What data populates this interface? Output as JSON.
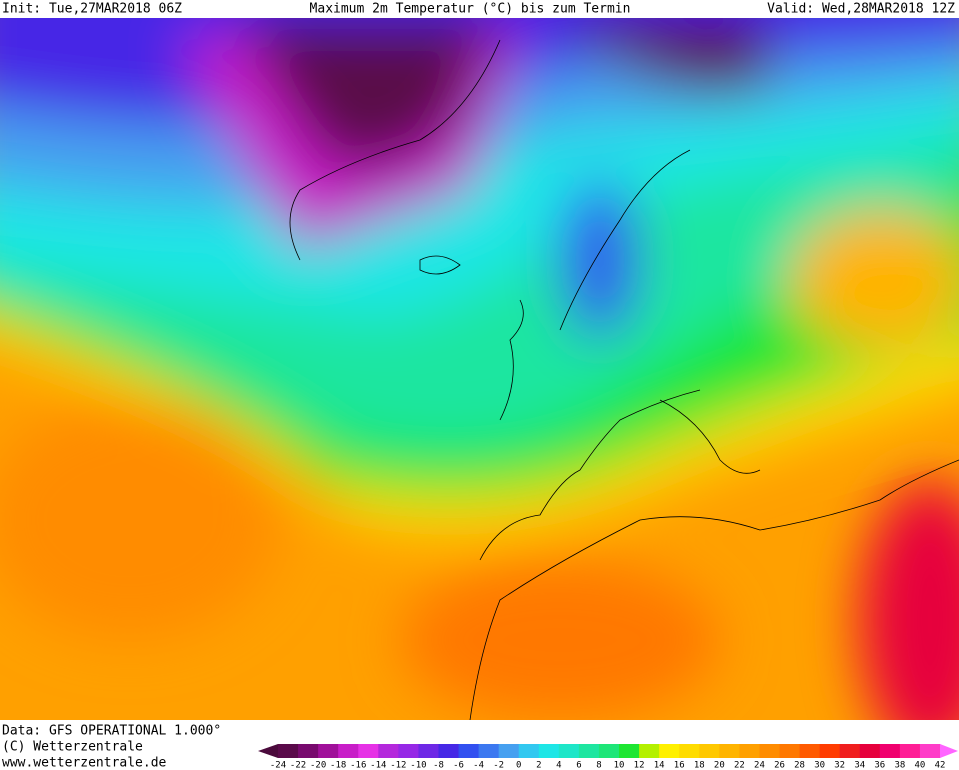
{
  "header": {
    "init": "Init: Tue,27MAR2018 06Z",
    "title": "Maximum 2m Temperatur (°C) bis zum Termin",
    "valid": "Valid: Wed,28MAR2018 12Z"
  },
  "footer": {
    "lines": [
      "Data: GFS OPERATIONAL 1.000°",
      "(C) Wetterzentrale",
      "www.wetterzentrale.de"
    ]
  },
  "legend": {
    "ticks": [
      -24,
      -22,
      -20,
      -18,
      -16,
      -14,
      -12,
      -10,
      -8,
      -6,
      -4,
      -2,
      0,
      2,
      4,
      6,
      8,
      10,
      12,
      14,
      16,
      18,
      20,
      22,
      24,
      26,
      28,
      30,
      32,
      34,
      36,
      38,
      40,
      42
    ],
    "colors": [
      "#4b0a3c",
      "#5a0a4a",
      "#780a6e",
      "#a0109a",
      "#c81ec8",
      "#e632e6",
      "#b428dc",
      "#9628e6",
      "#6e28e6",
      "#4628e6",
      "#3250f0",
      "#3c78f0",
      "#46a0f0",
      "#32c8f0",
      "#1ee6e6",
      "#1ee6c8",
      "#1ee6a0",
      "#1ee678",
      "#1ee632",
      "#b4f000",
      "#fff000",
      "#ffdc00",
      "#ffc800",
      "#ffb400",
      "#ffa000",
      "#ff8c00",
      "#ff7800",
      "#ff5a00",
      "#ff3c00",
      "#f01e1e",
      "#e6003c",
      "#f0006e",
      "#ff1e96",
      "#ff3cc8",
      "#ff64ff"
    ]
  }
}
